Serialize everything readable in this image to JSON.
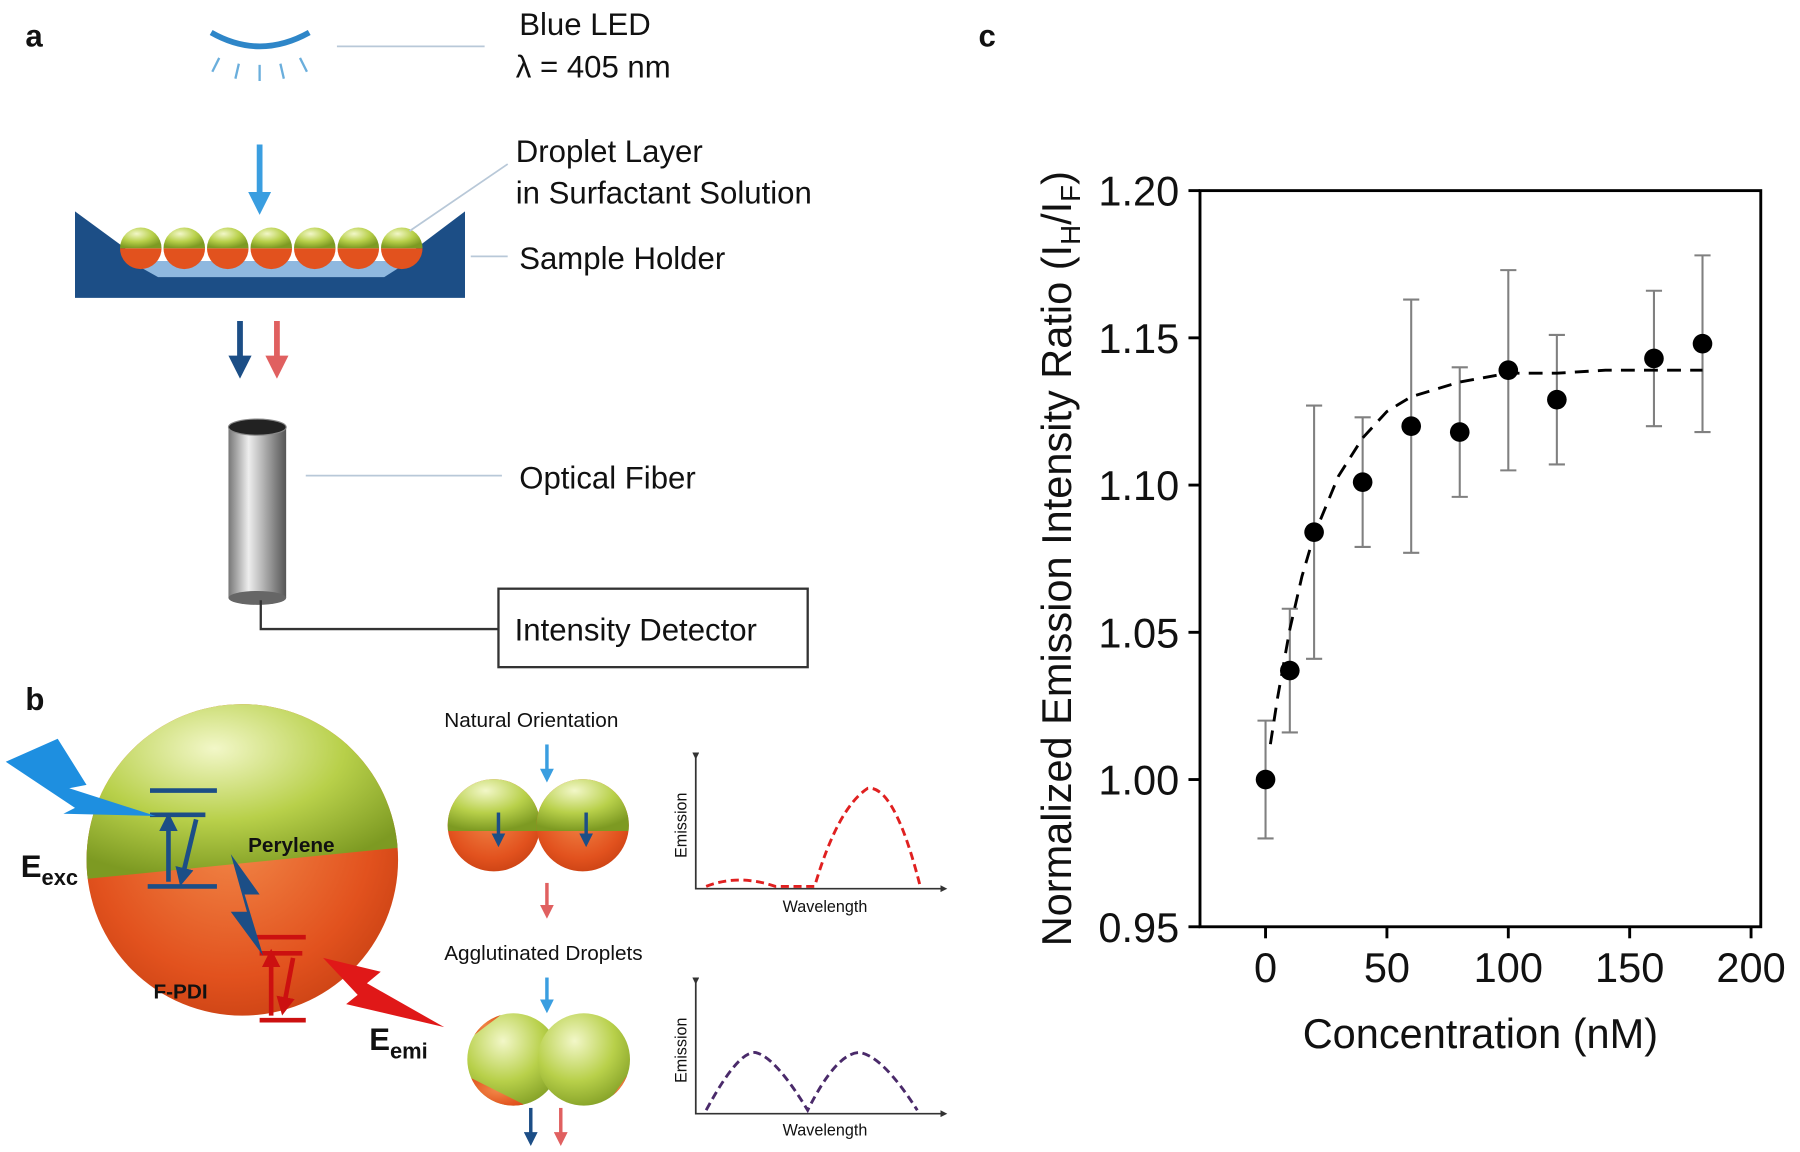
{
  "panel_labels": [
    "a",
    "b",
    "c"
  ],
  "panel_a": {
    "led_label": [
      "Blue LED",
      "λ = 405 nm"
    ],
    "droplet_label": [
      "Droplet Layer",
      "in Surfactant Solution"
    ],
    "holder_label": "Sample Holder",
    "fiber_label": "Optical Fiber",
    "detector_label": "Intensity Detector"
  },
  "panel_b": {
    "excitation": [
      "E",
      "exc"
    ],
    "top_phase": "Perylene",
    "bottom_phase": "F-PDI",
    "emission": [
      "E",
      "emi"
    ],
    "natural": "Natural Orientation",
    "agglutinated": "Agglutinated Droplets",
    "graph_ylabel": "Emission",
    "graph_xlabel": "Wavelength"
  },
  "chart_data": {
    "type": "scatter",
    "xlabel": "Concentration (nM)",
    "ylabel": [
      "Normalized Emission Intensity Ratio (I",
      "H",
      "/I",
      "F",
      ")"
    ],
    "series": [
      {
        "x": [
          0,
          10,
          20,
          40,
          60,
          80,
          100,
          120,
          160,
          180
        ],
        "values": [
          1.0,
          1.037,
          1.084,
          1.101,
          1.12,
          1.118,
          1.139,
          1.129,
          1.143,
          1.148
        ],
        "errors": [
          0.02,
          0.021,
          0.043,
          0.022,
          0.043,
          0.022,
          0.034,
          0.022,
          0.023,
          0.03
        ],
        "color": "#000000",
        "error_color": "#808080"
      },
      {
        "type": "line",
        "style": "dashed",
        "x": [
          2,
          5,
          10,
          15,
          20,
          30,
          40,
          50,
          60,
          80,
          100,
          120,
          140,
          160,
          180
        ],
        "values": [
          1.012,
          1.028,
          1.051,
          1.069,
          1.083,
          1.103,
          1.116,
          1.125,
          1.13,
          1.135,
          1.138,
          1.138,
          1.139,
          1.139,
          1.139
        ],
        "color": "#000000"
      }
    ],
    "xlim": [
      -27,
      204
    ],
    "xticks": [
      0,
      50,
      100,
      150,
      200
    ],
    "ylim": [
      0.95,
      1.2
    ],
    "yticks": [
      0.95,
      {
        "value": 1.0,
        "label": "1.00"
      },
      1.05,
      {
        "value": 1.1,
        "label": "1.10"
      },
      1.15,
      {
        "value": 1.2,
        "label": "1.20"
      }
    ]
  }
}
